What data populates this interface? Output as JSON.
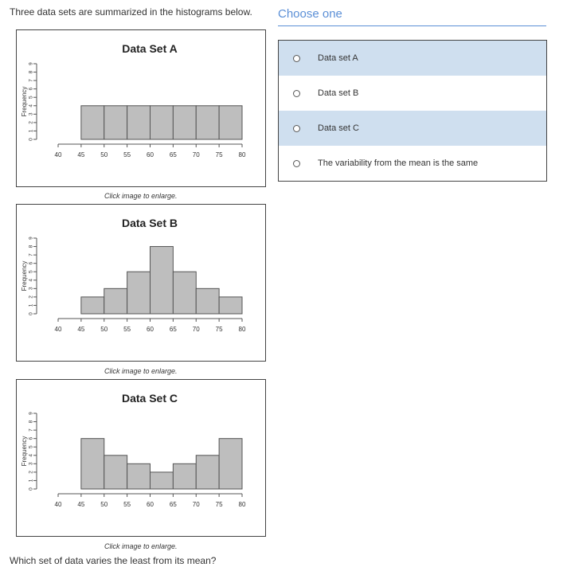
{
  "intro_text": "Three data sets are summarized in the histograms below.",
  "question_text": "Which set of data varies the least from its mean?",
  "choose_title": "Choose one",
  "caption": "Click image to enlarge.",
  "options": [
    {
      "label": "Data set A",
      "shaded": true
    },
    {
      "label": "Data set B",
      "shaded": false
    },
    {
      "label": "Data set C",
      "shaded": true
    },
    {
      "label": "The variability from the mean is the same",
      "shaded": false
    }
  ],
  "chart_data": [
    {
      "type": "bar",
      "title": "Data Set A",
      "ylabel": "Frequency",
      "bins": [
        [
          45,
          50
        ],
        [
          50,
          55
        ],
        [
          55,
          60
        ],
        [
          60,
          65
        ],
        [
          65,
          70
        ],
        [
          70,
          75
        ],
        [
          75,
          80
        ]
      ],
      "values": [
        4,
        4,
        4,
        4,
        4,
        4,
        4
      ],
      "xticks": [
        "40",
        "45",
        "50",
        "55",
        "60",
        "65",
        "70",
        "75",
        "80"
      ],
      "yticks": [
        "0",
        "1",
        "2",
        "3",
        "4",
        "5",
        "6",
        "7",
        "8",
        "9"
      ],
      "xlim": [
        40,
        80
      ],
      "ylim": [
        0,
        9
      ],
      "bar_color": "#bebebe"
    },
    {
      "type": "bar",
      "title": "Data Set B",
      "ylabel": "Frequency",
      "bins": [
        [
          45,
          50
        ],
        [
          50,
          55
        ],
        [
          55,
          60
        ],
        [
          60,
          65
        ],
        [
          65,
          70
        ],
        [
          70,
          75
        ],
        [
          75,
          80
        ]
      ],
      "values": [
        2,
        3,
        5,
        8,
        5,
        3,
        2
      ],
      "xticks": [
        "40",
        "45",
        "50",
        "55",
        "60",
        "65",
        "70",
        "75",
        "80"
      ],
      "yticks": [
        "0",
        "1",
        "2",
        "3",
        "4",
        "5",
        "6",
        "7",
        "8",
        "9"
      ],
      "xlim": [
        40,
        80
      ],
      "ylim": [
        0,
        9
      ],
      "bar_color": "#bebebe"
    },
    {
      "type": "bar",
      "title": "Data Set C",
      "ylabel": "Frequency",
      "bins": [
        [
          45,
          50
        ],
        [
          50,
          55
        ],
        [
          55,
          60
        ],
        [
          60,
          65
        ],
        [
          65,
          70
        ],
        [
          70,
          75
        ],
        [
          75,
          80
        ]
      ],
      "values": [
        6,
        4,
        3,
        2,
        3,
        4,
        6
      ],
      "xticks": [
        "40",
        "45",
        "50",
        "55",
        "60",
        "65",
        "70",
        "75",
        "80"
      ],
      "yticks": [
        "0",
        "1",
        "2",
        "3",
        "4",
        "5",
        "6",
        "7",
        "8",
        "9"
      ],
      "xlim": [
        40,
        80
      ],
      "ylim": [
        0,
        9
      ],
      "bar_color": "#bebebe"
    }
  ]
}
